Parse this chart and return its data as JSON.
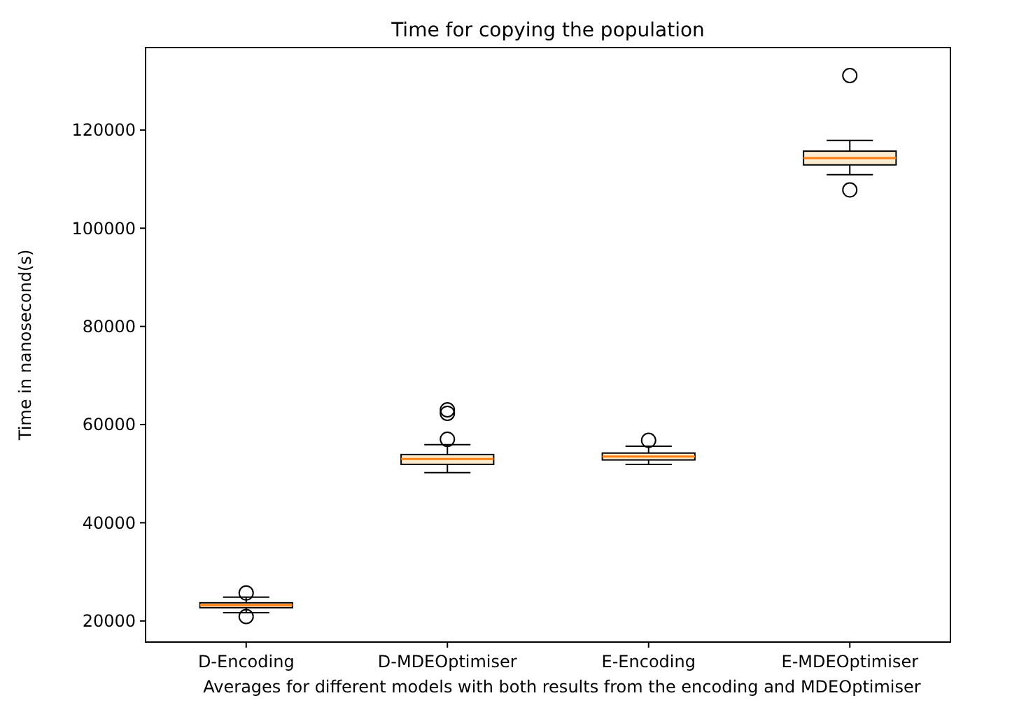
{
  "chart_data": {
    "type": "box",
    "title": "Time for copying the population",
    "xlabel": "Averages for different models with both results from the encoding and MDEOptimiser",
    "ylabel": "Time in nanosecond(s)",
    "categories": [
      "D-Encoding",
      "D-MDEOptimiser",
      "E-Encoding",
      "E-MDEOptimiser"
    ],
    "ylim": [
      15700,
      136800
    ],
    "yticks": [
      20000,
      40000,
      60000,
      80000,
      100000,
      120000
    ],
    "grid": false,
    "series": [
      {
        "color": "#fdebd0",
        "boxes": [
          {
            "low": 21700,
            "q1": 22700,
            "median": 23200,
            "q3": 23700,
            "high": 24850,
            "outliers": [
              20900,
              25700
            ]
          },
          {
            "low": 50200,
            "q1": 51900,
            "median": 53000,
            "q3": 53900,
            "high": 55900,
            "outliers": [
              57000,
              62300,
              63000
            ]
          },
          {
            "low": 51900,
            "q1": 52800,
            "median": 53500,
            "q3": 54200,
            "high": 55600,
            "outliers": [
              56800
            ]
          },
          {
            "low": 110900,
            "q1": 112900,
            "median": 114300,
            "q3": 115700,
            "high": 117900,
            "outliers": [
              107800,
              131100
            ]
          }
        ]
      }
    ]
  }
}
